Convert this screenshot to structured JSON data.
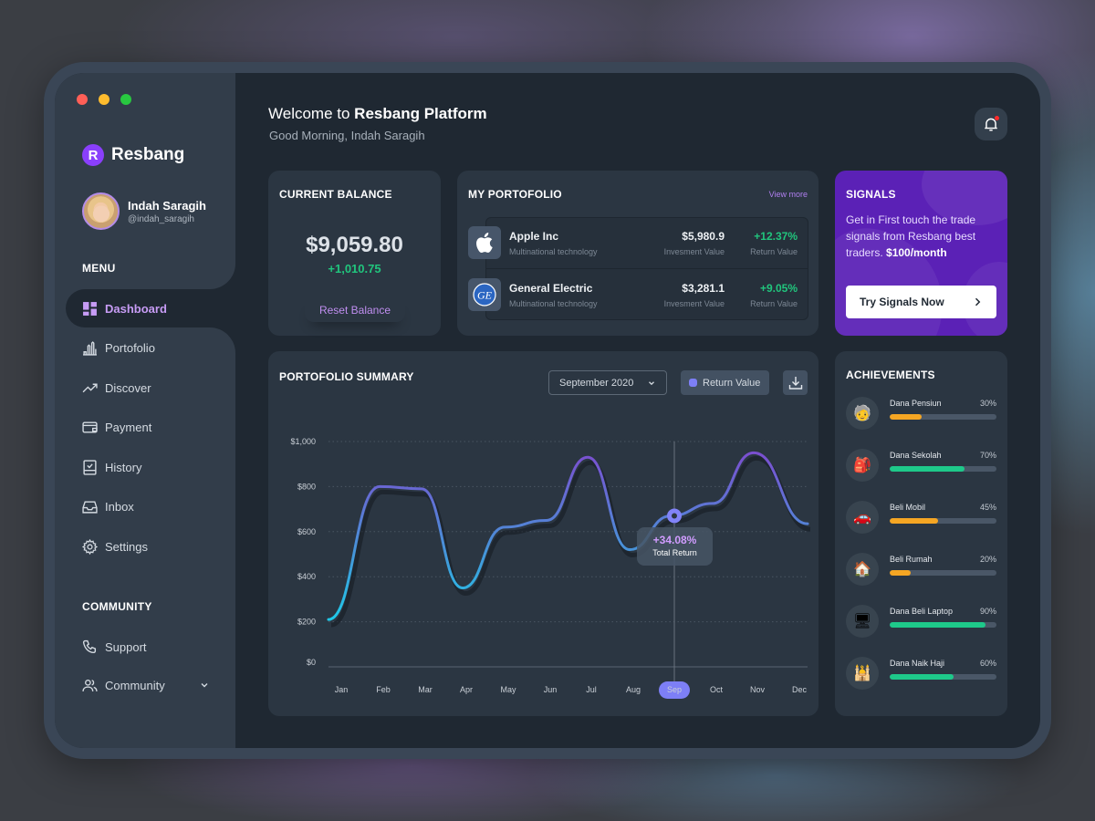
{
  "window": {
    "traffic_lights": [
      "#ff5f57",
      "#febc2e",
      "#28c840"
    ]
  },
  "sidebar": {
    "brand": {
      "letter": "R",
      "name": "Resbang",
      "color": "#8a3ffc"
    },
    "user": {
      "name": "Indah Saragih",
      "handle": "@indah_saragih"
    },
    "menu_label": "MENU",
    "menu_items": [
      {
        "label": "Dashboard",
        "icon": "dashboard-icon",
        "active": true
      },
      {
        "label": "Portofolio",
        "icon": "bar-chart-icon",
        "active": false
      },
      {
        "label": "Discover",
        "icon": "trending-up-icon",
        "active": false
      },
      {
        "label": "Payment",
        "icon": "wallet-icon",
        "active": false
      },
      {
        "label": "History",
        "icon": "history-checklist-icon",
        "active": false
      },
      {
        "label": "Inbox",
        "icon": "inbox-icon",
        "active": false
      },
      {
        "label": "Settings",
        "icon": "gear-icon",
        "active": false
      }
    ],
    "community_label": "COMMUNITY",
    "community_items": [
      {
        "label": "Support",
        "icon": "phone-icon"
      },
      {
        "label": "Community",
        "icon": "users-icon",
        "has_dropdown": true
      }
    ]
  },
  "header": {
    "welcome_prefix": "Welcome to ",
    "welcome_bold": "Resbang Platform",
    "greeting": "Good Morning, Indah Saragih",
    "notification_icon": "bell-icon",
    "has_unread": true
  },
  "balance": {
    "title": "CURRENT BALANCE",
    "amount": "$9,059.80",
    "change": "+1,010.75",
    "reset_label": "Reset Balance"
  },
  "portfolio": {
    "title": "MY PORTOFOLIO",
    "view_more": "View more",
    "stocks": [
      {
        "name": "Apple Inc",
        "sector": "Multinational technology",
        "investment": "$5,980.9",
        "investment_label": "Invesment Value",
        "return": "+12.37%",
        "return_label": "Return Value",
        "logo": "apple-logo-icon"
      },
      {
        "name": "General Electric",
        "sector": "Multinational technology",
        "investment": "$3,281.1",
        "investment_label": "Invesment Value",
        "return": "+9.05%",
        "return_label": "Return Value",
        "logo": "ge-logo-icon"
      }
    ]
  },
  "signals": {
    "title": "SIGNALS",
    "text": "Get in First touch the trade signals from Resbang best traders. ",
    "price": "$100/month",
    "button": "Try Signals Now"
  },
  "summary": {
    "title": "PORTOFOLIO SUMMARY",
    "month_select": "September 2020",
    "legend_label": "Return Value",
    "legend_color": "#7d7ff6",
    "tooltip": {
      "value": "+34.08%",
      "label": "Total Return"
    },
    "selected_month": "Sep"
  },
  "chart_data": {
    "type": "line",
    "title": "PORTOFOLIO SUMMARY",
    "xlabel": "",
    "ylabel": "",
    "categories": [
      "Jan",
      "Feb",
      "Mar",
      "Apr",
      "May",
      "Jun",
      "Jul",
      "Aug",
      "Sep",
      "Oct",
      "Nov",
      "Dec"
    ],
    "y_ticks": [
      "$0",
      "$200",
      "$400",
      "$600",
      "$800",
      "$1,000"
    ],
    "ylim": [
      0,
      1000
    ],
    "grid": true,
    "series": [
      {
        "name": "Return Value",
        "values": [
          210,
          800,
          790,
          350,
          620,
          650,
          930,
          520,
          670,
          725,
          950,
          635
        ]
      }
    ],
    "highlight": {
      "category": "Sep",
      "value": 670,
      "annotation": "+34.08% Total Return"
    },
    "legend_position": "top-right"
  },
  "achievements": {
    "title": "ACHIEVEMENTS",
    "items": [
      {
        "name": "Dana Pensiun",
        "percent": 30,
        "percent_label": "30%",
        "color": "#f5a623",
        "icon": "🧓"
      },
      {
        "name": "Dana Sekolah",
        "percent": 70,
        "percent_label": "70%",
        "color": "#1ec98a",
        "icon": "🎒"
      },
      {
        "name": "Beli Mobil",
        "percent": 45,
        "percent_label": "45%",
        "color": "#f5a623",
        "icon": "🚗"
      },
      {
        "name": "Beli Rumah",
        "percent": 20,
        "percent_label": "20%",
        "color": "#f5a623",
        "icon": "🏠"
      },
      {
        "name": "Dana Beli Laptop",
        "percent": 90,
        "percent_label": "90%",
        "color": "#1ec98a",
        "icon": "🖥"
      },
      {
        "name": "Dana Naik Haji",
        "percent": 60,
        "percent_label": "60%",
        "color": "#1ec98a",
        "icon": "🕌"
      }
    ]
  }
}
